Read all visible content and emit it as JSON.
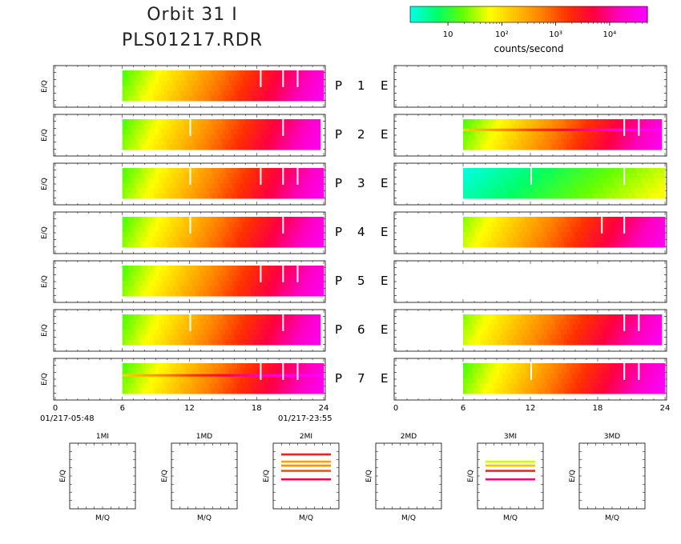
{
  "title": {
    "line1": "Orbit 31 I",
    "line2": "PLS01217.RDR"
  },
  "colorbar": {
    "label": "counts/second",
    "tick_labels": [
      "10",
      "10²",
      "10³",
      "10⁴"
    ],
    "colors": [
      "#00ffe0",
      "#00ff66",
      "#66ff00",
      "#ffff00",
      "#ffc000",
      "#ff8000",
      "#ff3000",
      "#ff0040",
      "#ff00c0",
      "#ff00ff"
    ]
  },
  "time_axis": {
    "start_label": "01/217-05:48",
    "end_label": "01/217-23:55",
    "tick_labels": [
      "0",
      "6",
      "12",
      "18",
      "24"
    ]
  },
  "chart_data": {
    "type": "heatmap",
    "ylabel": "E/Q",
    "x_range": [
      0,
      24
    ],
    "x_ticks": [
      0,
      6,
      12,
      18,
      24
    ],
    "colorbar_range_log10": [
      0.3,
      4.7
    ],
    "rows": [
      {
        "label": "P 1 E",
        "p": {
          "start": 6,
          "end": 24,
          "log_start": 1.3,
          "log_end": 4.5,
          "gaps": [
            18.3,
            20.3,
            21.6
          ],
          "stripe": null
        },
        "e": null
      },
      {
        "label": "P 2 E",
        "p": {
          "start": 6,
          "end": 23.7,
          "log_start": 1.3,
          "log_end": 4.5,
          "gaps": [
            12.0,
            20.3
          ],
          "stripe": null
        },
        "e": {
          "start": 6,
          "end": 23.7,
          "log_start": 1.3,
          "log_end": 4.5,
          "gaps": [
            20.3,
            21.6
          ],
          "stripe": 0.35
        }
      },
      {
        "label": "P 3 E",
        "p": {
          "start": 6,
          "end": 24,
          "log_start": 1.3,
          "log_end": 4.5,
          "gaps": [
            12.0,
            18.3,
            20.3,
            21.6
          ],
          "stripe": null
        },
        "e": {
          "start": 6,
          "end": 24,
          "log_start": 0.4,
          "log_end": 1.7,
          "gaps": [
            12.0,
            20.3
          ],
          "stripe": null
        }
      },
      {
        "label": "P 4 E",
        "p": {
          "start": 6,
          "end": 24,
          "log_start": 1.3,
          "log_end": 4.5,
          "gaps": [
            12.0,
            20.3
          ],
          "stripe": null
        },
        "e": {
          "start": 6,
          "end": 24,
          "log_start": 1.5,
          "log_end": 4.5,
          "gaps": [
            18.3,
            20.3
          ],
          "stripe": null
        }
      },
      {
        "label": "P 5 E",
        "p": {
          "start": 6,
          "end": 24,
          "log_start": 1.3,
          "log_end": 4.5,
          "gaps": [
            18.3,
            20.3,
            21.6
          ],
          "stripe": null
        },
        "e": null
      },
      {
        "label": "P 6 E",
        "p": {
          "start": 6,
          "end": 23.7,
          "log_start": 1.3,
          "log_end": 4.5,
          "gaps": [
            12.0,
            20.3
          ],
          "stripe": null
        },
        "e": {
          "start": 6,
          "end": 23.7,
          "log_start": 1.5,
          "log_end": 4.5,
          "gaps": [
            20.3,
            21.6
          ],
          "stripe": null
        }
      },
      {
        "label": "P 7 E",
        "p": {
          "start": 6,
          "end": 24,
          "log_start": 1.3,
          "log_end": 4.5,
          "gaps": [
            18.3,
            20.3,
            21.6
          ],
          "stripe": 0.4
        },
        "e": {
          "start": 6,
          "end": 24,
          "log_start": 1.3,
          "log_end": 4.6,
          "gaps": [
            12.0,
            20.3,
            21.6
          ],
          "stripe": null
        }
      }
    ],
    "mass_panels": [
      {
        "title": "1MI",
        "xlabel": "M/Q",
        "ylabel": "E/Q",
        "lines": []
      },
      {
        "title": "1MD",
        "xlabel": "M/Q",
        "ylabel": "E/Q",
        "lines": []
      },
      {
        "title": "2MI",
        "xlabel": "M/Q",
        "ylabel": "E/Q",
        "lines": [
          {
            "level": 0.83,
            "color": "#ff1a1a"
          },
          {
            "level": 0.72,
            "color": "#ffa000"
          },
          {
            "level": 0.66,
            "color": "#ff9000"
          },
          {
            "level": 0.58,
            "color": "#ff5000"
          },
          {
            "level": 0.45,
            "color": "#ff0040"
          }
        ]
      },
      {
        "title": "2MD",
        "xlabel": "M/Q",
        "ylabel": "E/Q",
        "lines": []
      },
      {
        "title": "3MI",
        "xlabel": "M/Q",
        "ylabel": "E/Q",
        "lines": [
          {
            "level": 0.72,
            "color": "#ccff00"
          },
          {
            "level": 0.66,
            "color": "#ffc000"
          },
          {
            "level": 0.58,
            "color": "#ff2020"
          },
          {
            "level": 0.45,
            "color": "#ff0080"
          }
        ]
      },
      {
        "title": "3MD",
        "xlabel": "M/Q",
        "ylabel": "E/Q",
        "lines": []
      }
    ]
  }
}
